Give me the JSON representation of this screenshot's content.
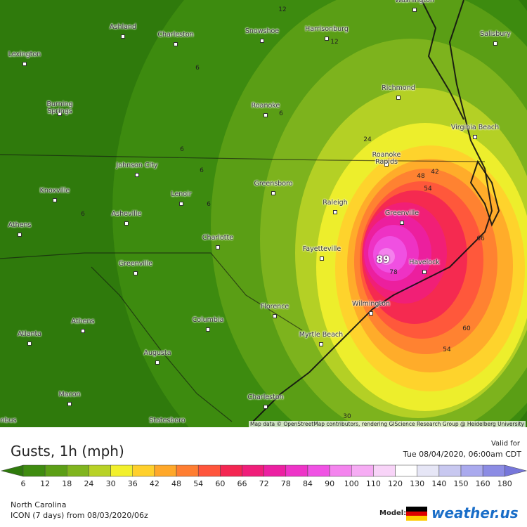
{
  "map": {
    "cities": [
      "Ashland",
      "Charleston",
      "Snowshoe",
      "Harrisonburg",
      "Washington",
      "Salisbury",
      "Lexington",
      "Burning Springs",
      "Roanoke",
      "Richmond",
      "Virginia Beach",
      "Johnson City",
      "Roanoke Rapids",
      "Greensboro",
      "Knoxville",
      "Lenoir",
      "Raleigh",
      "Asheville",
      "Greenville",
      "Athens",
      "Charlotte",
      "Fayetteville",
      "Havelock",
      "Greenville",
      "Florence",
      "Wilmington",
      "Columbia",
      "Athens",
      "Atlanta",
      "Myrtle Beach",
      "Augusta",
      "Macon",
      "Charleston",
      "Statesboro",
      "nbus"
    ],
    "contour_labels": [
      "12",
      "12",
      "6",
      "6",
      "6",
      "24",
      "6",
      "6",
      "6",
      "48",
      "42",
      "54",
      "66",
      "89",
      "78",
      "60",
      "54",
      "30"
    ],
    "attribution": "Map data © OpenStreetMap contributors, rendering GIScience Research Group @ Heidelberg University"
  },
  "header": {
    "title": "Gusts, 1h (mph)",
    "valid_label": "Valid for",
    "valid_time": "Tue 08/04/2020, 06:00am CDT"
  },
  "legend": {
    "ticks": [
      6,
      12,
      18,
      24,
      30,
      36,
      42,
      48,
      54,
      60,
      66,
      72,
      78,
      84,
      90,
      100,
      110,
      120,
      130,
      140,
      150,
      160,
      180
    ],
    "colors": [
      "#2f7a0c",
      "#3f8c10",
      "#5c9f16",
      "#80b51e",
      "#b8d226",
      "#f2f02c",
      "#ffd02c",
      "#ffa82a",
      "#ff7e32",
      "#ff553c",
      "#f42652",
      "#f01e7a",
      "#ec20a2",
      "#ee34c8",
      "#f052e4",
      "#f484ee",
      "#f6acf4",
      "#f8d4f8",
      "#ffffff",
      "#e6e6f6",
      "#c8c8f0",
      "#aaaaee",
      "#8c8ce4",
      "#7676da"
    ]
  },
  "footer": {
    "region": "North Carolina",
    "model_run": "ICON (7 days) from 08/03/2020/06z",
    "model_label": "Model:",
    "brand": "weather.us"
  }
}
